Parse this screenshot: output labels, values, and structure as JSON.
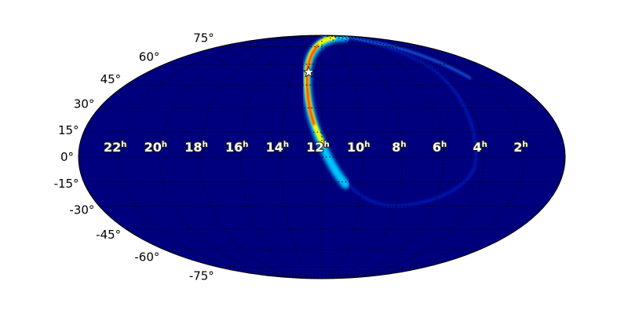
{
  "chart_data": {
    "type": "heatmap",
    "projection": "mollweide",
    "title": "",
    "colormap": "jet",
    "background_color": "#00007f",
    "grid": true,
    "ra_ticks": [
      {
        "hours": 22,
        "label": "22",
        "unit": "h"
      },
      {
        "hours": 20,
        "label": "20",
        "unit": "h"
      },
      {
        "hours": 18,
        "label": "18",
        "unit": "h"
      },
      {
        "hours": 16,
        "label": "16",
        "unit": "h"
      },
      {
        "hours": 14,
        "label": "14",
        "unit": "h"
      },
      {
        "hours": 12,
        "label": "12",
        "unit": "h"
      },
      {
        "hours": 10,
        "label": "10",
        "unit": "h"
      },
      {
        "hours": 8,
        "label": "8",
        "unit": "h"
      },
      {
        "hours": 6,
        "label": "6",
        "unit": "h"
      },
      {
        "hours": 4,
        "label": "4",
        "unit": "h"
      },
      {
        "hours": 2,
        "label": "2",
        "unit": "h"
      }
    ],
    "dec_ticks": [
      {
        "deg": 75,
        "label": "75°"
      },
      {
        "deg": 60,
        "label": "60°"
      },
      {
        "deg": 45,
        "label": "45°"
      },
      {
        "deg": 30,
        "label": "30°"
      },
      {
        "deg": 15,
        "label": "15°"
      },
      {
        "deg": 0,
        "label": "0°"
      },
      {
        "deg": -15,
        "label": "-15°"
      },
      {
        "deg": -30,
        "label": "-30°"
      },
      {
        "deg": -45,
        "label": "-45°"
      },
      {
        "deg": -60,
        "label": "-60°"
      },
      {
        "deg": -75,
        "label": "-75°"
      }
    ],
    "marker": {
      "shape": "star",
      "ra_hours": 12.9,
      "dec_deg": 54,
      "color": "#ffffff"
    },
    "probability_band": {
      "description_colors": [
        "#00ffff",
        "#ffff00",
        "#ff0000"
      ]
    }
  }
}
